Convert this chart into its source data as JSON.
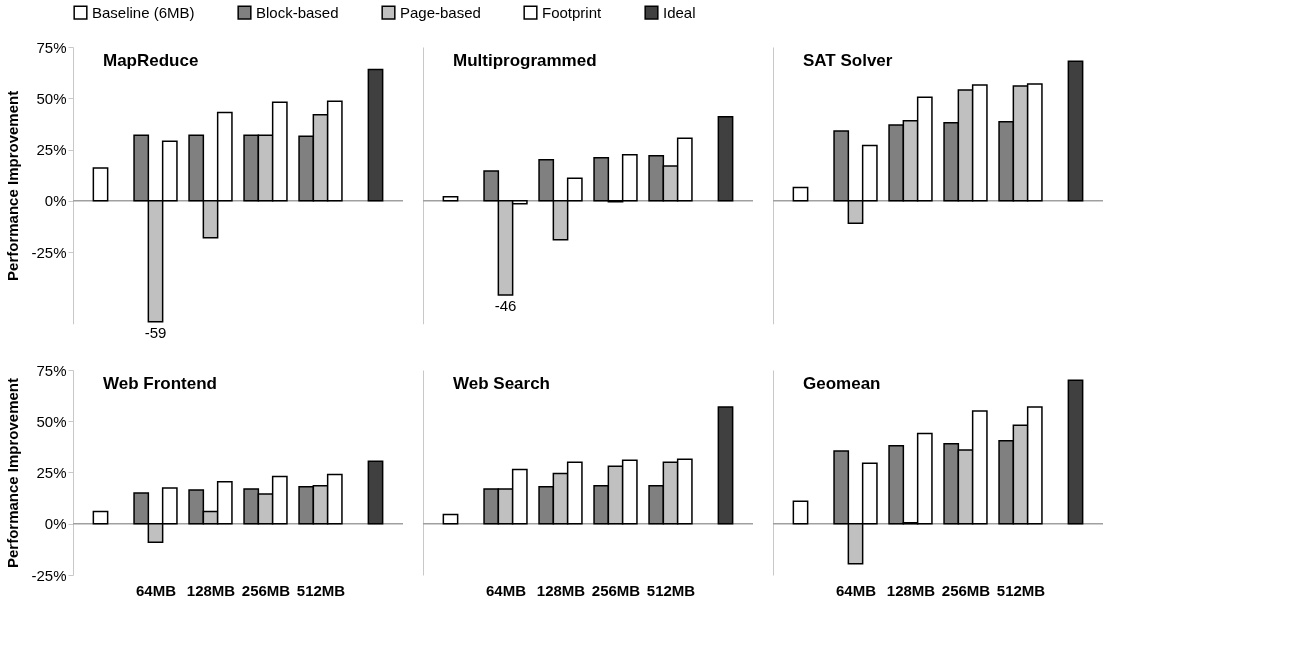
{
  "chart_data": [
    {
      "type": "bar",
      "title": "MapReduce",
      "ylabel": "Performance Improvement",
      "legend": "top",
      "tick_labels": "y",
      "categories": [
        null,
        "64MB",
        "128MB",
        "256MB",
        "512MB",
        null
      ],
      "ylim": [
        -60,
        75
      ],
      "yticks": [
        {
          "value": -25,
          "label": "-25%"
        },
        {
          "value": 0,
          "label": "0%"
        },
        {
          "value": 25,
          "label": "25%"
        },
        {
          "value": 50,
          "label": "50%"
        },
        {
          "value": 75,
          "label": "75%"
        }
      ],
      "series": [
        {
          "name": "Baseline (6MB)",
          "color": "#ffffff",
          "values": [
            16,
            null,
            null,
            null,
            null,
            null
          ]
        },
        {
          "name": "Block-based",
          "color": "#808080",
          "values": [
            null,
            32,
            32,
            32,
            31.5,
            null
          ]
        },
        {
          "name": "Page-based",
          "color": "#c0c0c0",
          "values": [
            null,
            -59,
            -18,
            32,
            42,
            null
          ],
          "value_labels": [
            null,
            "-59",
            null,
            null,
            null,
            null
          ]
        },
        {
          "name": "Footprint",
          "color": "#ffffff",
          "values": [
            null,
            29,
            43,
            48,
            48.5,
            null
          ]
        },
        {
          "name": "Ideal",
          "color": "#404040",
          "values": [
            null,
            null,
            null,
            null,
            null,
            64
          ]
        }
      ]
    },
    {
      "type": "bar",
      "title": "Multiprogrammed",
      "tick_labels": false,
      "categories": [
        null,
        "64MB",
        "128MB",
        "256MB",
        "512MB",
        null
      ],
      "ylim": [
        -60,
        75
      ],
      "yticks": [
        {
          "value": -25,
          "label": "-25%"
        },
        {
          "value": 0,
          "label": "0%"
        },
        {
          "value": 25,
          "label": "25%"
        },
        {
          "value": 50,
          "label": "50%"
        },
        {
          "value": 75,
          "label": "75%"
        }
      ],
      "series": [
        {
          "name": "Baseline (6MB)",
          "color": "#ffffff",
          "values": [
            2,
            null,
            null,
            null,
            null,
            null
          ]
        },
        {
          "name": "Block-based",
          "color": "#808080",
          "values": [
            null,
            14.5,
            20,
            21,
            22,
            null
          ]
        },
        {
          "name": "Page-based",
          "color": "#c0c0c0",
          "values": [
            null,
            -46,
            -19,
            -0.5,
            17,
            null
          ],
          "value_labels": [
            null,
            "-46",
            null,
            null,
            null,
            null
          ]
        },
        {
          "name": "Footprint",
          "color": "#ffffff",
          "values": [
            null,
            -1.5,
            11,
            22.5,
            30.5,
            null
          ]
        },
        {
          "name": "Ideal",
          "color": "#404040",
          "values": [
            null,
            null,
            null,
            null,
            null,
            41
          ]
        }
      ]
    },
    {
      "type": "bar",
      "title": "SAT Solver",
      "tick_labels": false,
      "categories": [
        null,
        "64MB",
        "128MB",
        "256MB",
        "512MB",
        null
      ],
      "ylim": [
        -60,
        75
      ],
      "yticks": [
        {
          "value": -25,
          "label": "-25%"
        },
        {
          "value": 0,
          "label": "0%"
        },
        {
          "value": 25,
          "label": "25%"
        },
        {
          "value": 50,
          "label": "50%"
        },
        {
          "value": 75,
          "label": "75%"
        }
      ],
      "series": [
        {
          "name": "Baseline (6MB)",
          "color": "#ffffff",
          "values": [
            6.5,
            null,
            null,
            null,
            null,
            null
          ]
        },
        {
          "name": "Block-based",
          "color": "#808080",
          "values": [
            null,
            34,
            37,
            38,
            38.5,
            null
          ]
        },
        {
          "name": "Page-based",
          "color": "#c0c0c0",
          "values": [
            null,
            -11,
            39,
            54,
            56,
            null
          ]
        },
        {
          "name": "Footprint",
          "color": "#ffffff",
          "values": [
            null,
            27,
            50.5,
            56.5,
            57,
            null
          ]
        },
        {
          "name": "Ideal",
          "color": "#404040",
          "values": [
            null,
            null,
            null,
            null,
            null,
            68
          ]
        }
      ]
    },
    {
      "type": "bar",
      "title": "Web Frontend",
      "ylabel": "Performance Improvement",
      "categories": [
        null,
        "64MB",
        "128MB",
        "256MB",
        "512MB",
        null
      ],
      "ylim": [
        -25,
        75
      ],
      "yticks": [
        {
          "value": -25,
          "label": "-25%"
        },
        {
          "value": 0,
          "label": "0%"
        },
        {
          "value": 25,
          "label": "25%"
        },
        {
          "value": 50,
          "label": "50%"
        },
        {
          "value": 75,
          "label": "75%"
        }
      ],
      "series": [
        {
          "name": "Baseline (6MB)",
          "color": "#ffffff",
          "values": [
            6,
            null,
            null,
            null,
            null,
            null
          ]
        },
        {
          "name": "Block-based",
          "color": "#808080",
          "values": [
            null,
            15,
            16.5,
            17,
            18,
            null
          ]
        },
        {
          "name": "Page-based",
          "color": "#c0c0c0",
          "values": [
            null,
            -9,
            6,
            14.5,
            18.5,
            null
          ]
        },
        {
          "name": "Footprint",
          "color": "#ffffff",
          "values": [
            null,
            17.5,
            20.5,
            23,
            24,
            null
          ]
        },
        {
          "name": "Ideal",
          "color": "#404040",
          "values": [
            null,
            null,
            null,
            null,
            null,
            30.5
          ]
        }
      ]
    },
    {
      "type": "bar",
      "title": "Web Search",
      "tick_labels": "x",
      "categories": [
        null,
        "64MB",
        "128MB",
        "256MB",
        "512MB",
        null
      ],
      "ylim": [
        -25,
        75
      ],
      "yticks": [
        {
          "value": -25,
          "label": "-25%"
        },
        {
          "value": 0,
          "label": "0%"
        },
        {
          "value": 25,
          "label": "25%"
        },
        {
          "value": 50,
          "label": "50%"
        },
        {
          "value": 75,
          "label": "75%"
        }
      ],
      "series": [
        {
          "name": "Baseline (6MB)",
          "color": "#ffffff",
          "values": [
            4.5,
            null,
            null,
            null,
            null,
            null
          ]
        },
        {
          "name": "Block-based",
          "color": "#808080",
          "values": [
            null,
            17,
            18,
            18.5,
            18.5,
            null
          ]
        },
        {
          "name": "Page-based",
          "color": "#c0c0c0",
          "values": [
            null,
            17,
            24.5,
            28,
            30,
            null
          ]
        },
        {
          "name": "Footprint",
          "color": "#ffffff",
          "values": [
            null,
            26.5,
            30,
            31,
            31.5,
            null
          ]
        },
        {
          "name": "Ideal",
          "color": "#404040",
          "values": [
            null,
            null,
            null,
            null,
            null,
            57
          ]
        }
      ]
    },
    {
      "type": "bar",
      "title": "Geomean",
      "tick_labels": "x",
      "categories": [
        null,
        "64MB",
        "128MB",
        "256MB",
        "512MB",
        null
      ],
      "ylim": [
        -25,
        75
      ],
      "yticks": [
        {
          "value": -25,
          "label": "-25%"
        },
        {
          "value": 0,
          "label": "0%"
        },
        {
          "value": 25,
          "label": "25%"
        },
        {
          "value": 50,
          "label": "50%"
        },
        {
          "value": 75,
          "label": "75%"
        }
      ],
      "series": [
        {
          "name": "Baseline (6MB)",
          "color": "#ffffff",
          "values": [
            11,
            null,
            null,
            null,
            null,
            null
          ]
        },
        {
          "name": "Block-based",
          "color": "#808080",
          "values": [
            null,
            35.5,
            38,
            39,
            40.5,
            null
          ]
        },
        {
          "name": "Page-based",
          "color": "#c0c0c0",
          "values": [
            null,
            -19.5,
            0.5,
            36,
            48,
            null
          ]
        },
        {
          "name": "Footprint",
          "color": "#ffffff",
          "values": [
            null,
            29.5,
            44,
            55,
            57,
            null
          ]
        },
        {
          "name": "Ideal",
          "color": "#404040",
          "values": [
            null,
            null,
            null,
            null,
            null,
            70
          ]
        }
      ]
    }
  ]
}
